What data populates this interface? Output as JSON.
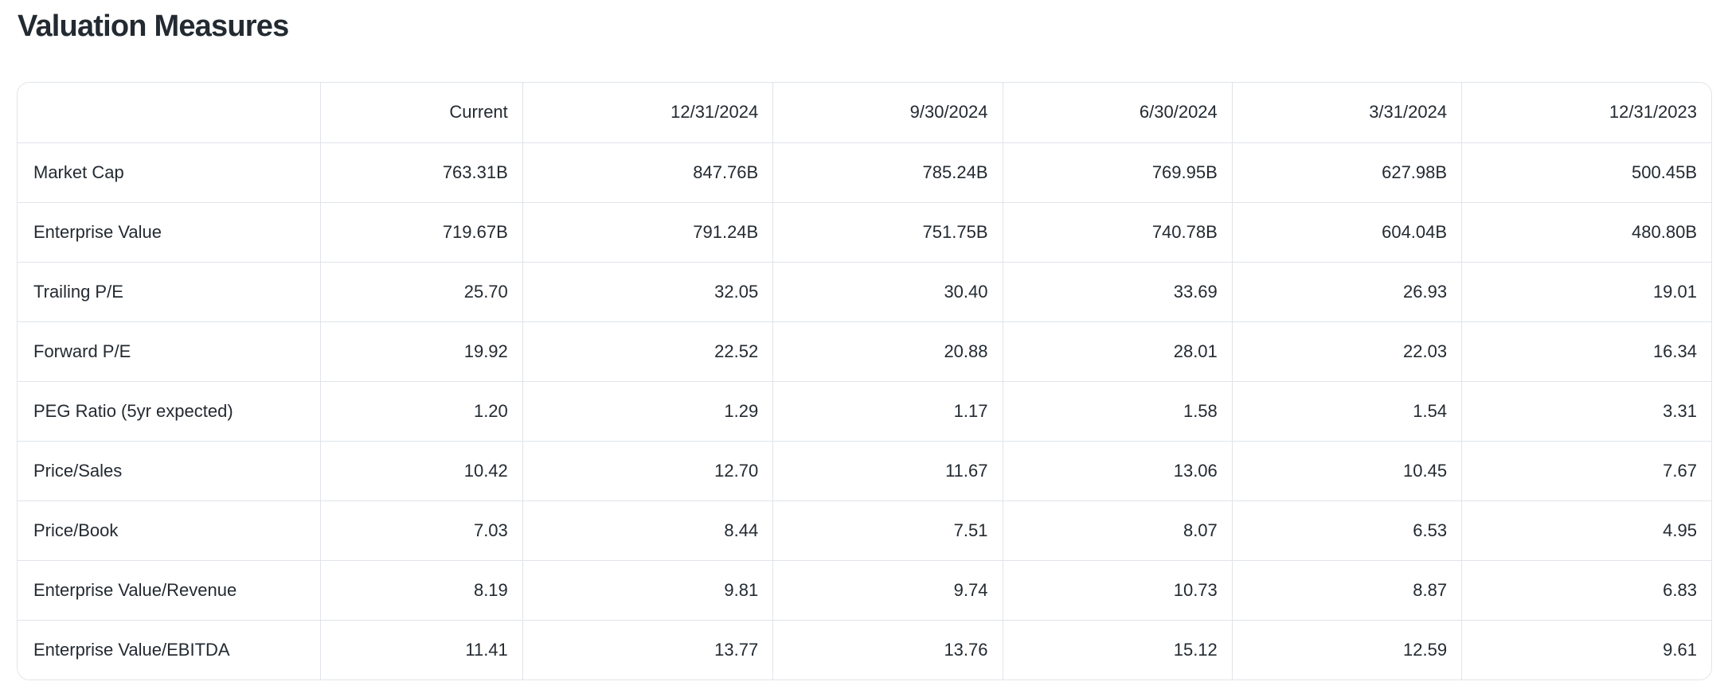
{
  "page": {
    "title": "Valuation Measures"
  },
  "colors": {
    "text": "#232a31",
    "border": "#e0e4e9",
    "background": "#ffffff"
  },
  "table": {
    "columns": [
      "",
      "Current",
      "12/31/2024",
      "9/30/2024",
      "6/30/2024",
      "3/31/2024",
      "12/31/2023"
    ],
    "rows": [
      {
        "label": "Market Cap",
        "values": [
          "763.31B",
          "847.76B",
          "785.24B",
          "769.95B",
          "627.98B",
          "500.45B"
        ]
      },
      {
        "label": "Enterprise Value",
        "values": [
          "719.67B",
          "791.24B",
          "751.75B",
          "740.78B",
          "604.04B",
          "480.80B"
        ]
      },
      {
        "label": "Trailing P/E",
        "values": [
          "25.70",
          "32.05",
          "30.40",
          "33.69",
          "26.93",
          "19.01"
        ]
      },
      {
        "label": "Forward P/E",
        "values": [
          "19.92",
          "22.52",
          "20.88",
          "28.01",
          "22.03",
          "16.34"
        ]
      },
      {
        "label": "PEG Ratio (5yr expected)",
        "values": [
          "1.20",
          "1.29",
          "1.17",
          "1.58",
          "1.54",
          "3.31"
        ]
      },
      {
        "label": "Price/Sales",
        "values": [
          "10.42",
          "12.70",
          "11.67",
          "13.06",
          "10.45",
          "7.67"
        ]
      },
      {
        "label": "Price/Book",
        "values": [
          "7.03",
          "8.44",
          "7.51",
          "8.07",
          "6.53",
          "4.95"
        ]
      },
      {
        "label": "Enterprise Value/Revenue",
        "values": [
          "8.19",
          "9.81",
          "9.74",
          "10.73",
          "8.87",
          "6.83"
        ]
      },
      {
        "label": "Enterprise Value/EBITDA",
        "values": [
          "11.41",
          "13.77",
          "13.76",
          "15.12",
          "12.59",
          "9.61"
        ]
      }
    ]
  }
}
